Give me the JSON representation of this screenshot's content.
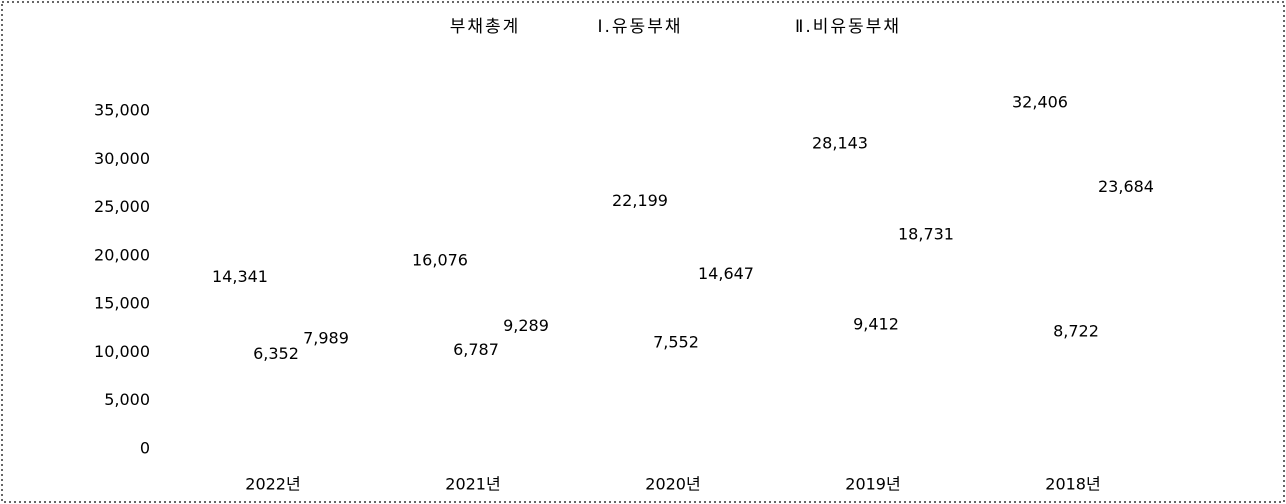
{
  "chart_data": {
    "type": "bar",
    "categories": [
      "2022년",
      "2021년",
      "2020년",
      "2019년",
      "2018년"
    ],
    "series": [
      {
        "name": "부채총계",
        "values": [
          14341,
          16076,
          22199,
          28143,
          32406
        ],
        "value_labels": [
          "14,341",
          "16,076",
          "22,199",
          "28,143",
          "32,406"
        ]
      },
      {
        "name": "Ⅰ.유동부채",
        "values": [
          6352,
          6787,
          7552,
          9412,
          8722
        ],
        "value_labels": [
          "6,352",
          "6,787",
          "7,552",
          "9,412",
          "8,722"
        ]
      },
      {
        "name": "Ⅱ.비유동부채",
        "values": [
          7989,
          9289,
          14647,
          18731,
          23684
        ],
        "value_labels": [
          "7,989",
          "9,289",
          "14,647",
          "18,731",
          "23,684"
        ]
      }
    ],
    "ylim": [
      0,
      35000
    ],
    "yticks": [
      0,
      {
        "value": 5000,
        "label": "5,000"
      },
      {
        "value": 10000,
        "label": "10,000"
      },
      {
        "value": 15000,
        "label": "15,000"
      },
      {
        "value": 20000,
        "label": "20,000"
      },
      {
        "value": 25000,
        "label": "25,000"
      },
      {
        "value": 30000,
        "label": "30,000"
      },
      {
        "value": 35000,
        "label": "35,000"
      }
    ],
    "grid": false
  }
}
